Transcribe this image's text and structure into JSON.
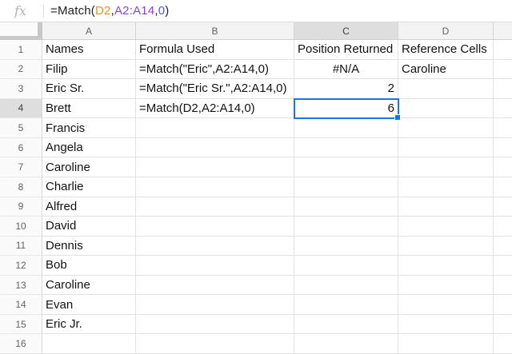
{
  "formula_bar": {
    "fx_label": "fx",
    "formula_tokens": [
      {
        "text": "=Match(",
        "color": "#1f1f1f"
      },
      {
        "text": "D2",
        "color": "#ef8e1b"
      },
      {
        "text": ",",
        "color": "#1f1f1f"
      },
      {
        "text": "A2:A14",
        "color": "#8f43d6"
      },
      {
        "text": ",",
        "color": "#1f1f1f"
      },
      {
        "text": "0",
        "color": "#4a5ed4"
      },
      {
        "text": ")",
        "color": "#1f1f1f"
      }
    ]
  },
  "grid": {
    "column_headers": [
      "A",
      "B",
      "C",
      "D"
    ],
    "selection": {
      "cell": "C4",
      "column": "C",
      "row": 4,
      "value": "6"
    },
    "error_indicator_cell": "C2",
    "rows": [
      {
        "n": "1",
        "cells": {
          "A": "Names",
          "B": "Formula Used",
          "C": "Position Returned",
          "D": "Reference Cells"
        }
      },
      {
        "n": "2",
        "cells": {
          "A": "Filip",
          "B": "=Match(\"Eric\",A2:A14,0)",
          "C": "#N/A",
          "D": "Caroline"
        }
      },
      {
        "n": "3",
        "cells": {
          "A": "Eric Sr.",
          "B": "=Match(\"Eric Sr.\",A2:A14,0)",
          "C": "2",
          "D": ""
        }
      },
      {
        "n": "4",
        "cells": {
          "A": "Brett",
          "B": "=Match(D2,A2:A14,0)",
          "C": "6",
          "D": ""
        }
      },
      {
        "n": "5",
        "cells": {
          "A": "Francis",
          "B": "",
          "C": "",
          "D": ""
        }
      },
      {
        "n": "6",
        "cells": {
          "A": "Angela",
          "B": "",
          "C": "",
          "D": ""
        }
      },
      {
        "n": "7",
        "cells": {
          "A": "Caroline",
          "B": "",
          "C": "",
          "D": ""
        }
      },
      {
        "n": "8",
        "cells": {
          "A": "Charlie",
          "B": "",
          "C": "",
          "D": ""
        }
      },
      {
        "n": "9",
        "cells": {
          "A": "Alfred",
          "B": "",
          "C": "",
          "D": ""
        }
      },
      {
        "n": "10",
        "cells": {
          "A": "David",
          "B": "",
          "C": "",
          "D": ""
        }
      },
      {
        "n": "11",
        "cells": {
          "A": "Dennis",
          "B": "",
          "C": "",
          "D": ""
        }
      },
      {
        "n": "12",
        "cells": {
          "A": "Bob",
          "B": "",
          "C": "",
          "D": ""
        }
      },
      {
        "n": "13",
        "cells": {
          "A": "Caroline",
          "B": "",
          "C": "",
          "D": ""
        }
      },
      {
        "n": "14",
        "cells": {
          "A": "Evan",
          "B": "",
          "C": "",
          "D": ""
        }
      },
      {
        "n": "15",
        "cells": {
          "A": "Eric Jr.",
          "B": "",
          "C": "",
          "D": ""
        }
      },
      {
        "n": "16",
        "cells": {
          "A": "",
          "B": "",
          "C": "",
          "D": ""
        }
      }
    ]
  },
  "colors": {
    "selection_blue": "#1a73e8",
    "error_marker": "#b5491f",
    "header_bg": "#f3f3f3",
    "header_selected_bg": "#dedede",
    "gridline": "#e2e2e2"
  }
}
